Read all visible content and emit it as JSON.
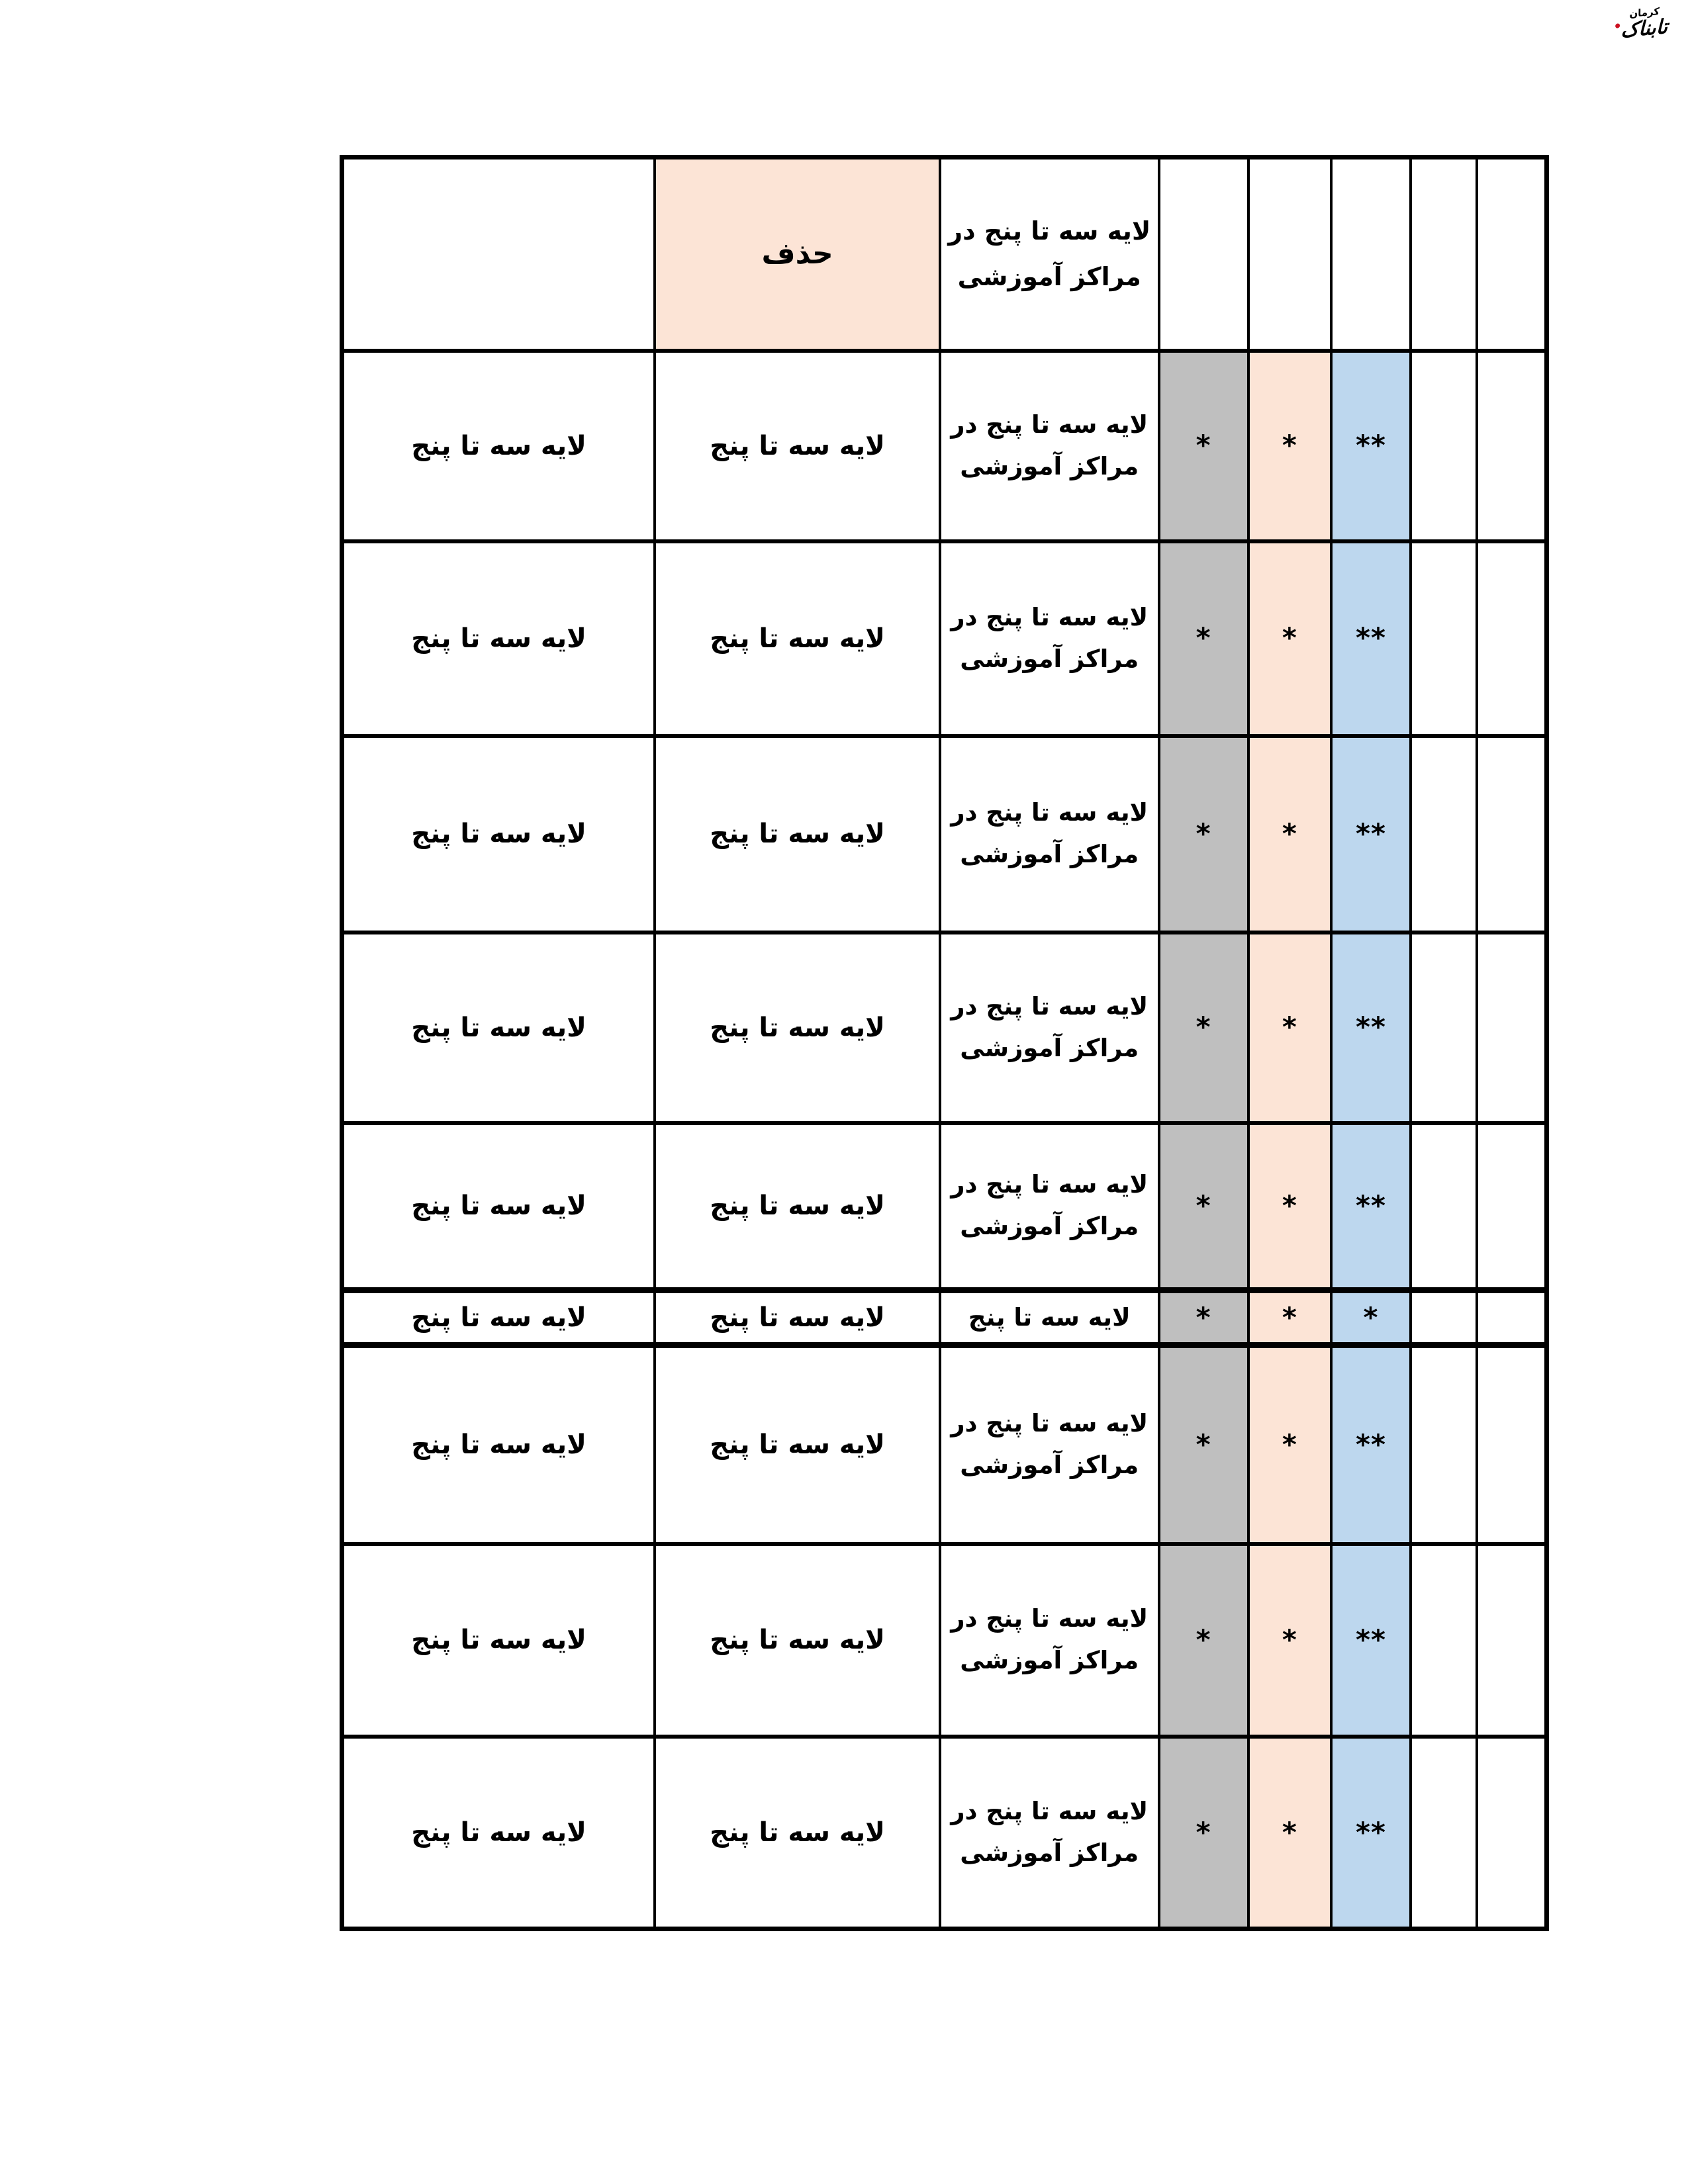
{
  "logo": {
    "brand": "تابناک",
    "city": "کرمان"
  },
  "colors": {
    "ink": "#000000",
    "paper": "#ffffff",
    "peach": "#fce4d6",
    "gray": "#bfbfbf",
    "blue": "#bdd7ee",
    "logo-red": "#cc1122"
  },
  "table": {
    "column_names": [
      "layer-range",
      "delete",
      "layer-range-in-centers",
      "flag-gray",
      "flag-peach",
      "flag-blue",
      "empty-1",
      "empty-2"
    ],
    "header_cells": [
      "",
      "حذف",
      "لایه سه تا پنج در\nمراکز آموزشی",
      "",
      "",
      "",
      "",
      ""
    ],
    "rows": [
      {
        "cells": [
          "لایه سه تا پنج",
          "لایه سه تا پنج",
          "لایه سه تا پنج در\nمراکز آموزشی",
          "*",
          "*",
          "**",
          "",
          ""
        ]
      },
      {
        "cells": [
          "لایه سه تا پنج",
          "لایه سه تا پنج",
          "لایه سه تا پنج در\nمراکز آموزشی",
          "*",
          "*",
          "**",
          "",
          ""
        ]
      },
      {
        "cells": [
          "لایه سه تا پنج",
          "لایه سه تا پنج",
          "لایه سه تا پنج در\nمراکز آموزشی",
          "*",
          "*",
          "**",
          "",
          ""
        ]
      },
      {
        "cells": [
          "لایه سه تا پنج",
          "لایه سه تا پنج",
          "لایه سه تا پنج در\nمراکز آموزشی",
          "*",
          "*",
          "**",
          "",
          ""
        ]
      },
      {
        "cells": [
          "لایه سه تا پنج",
          "لایه سه تا پنج",
          "لایه سه تا پنج در\nمراکز آموزشی",
          "*",
          "*",
          "**",
          "",
          ""
        ]
      },
      {
        "compact": true,
        "cells": [
          "لایه سه تا پنج",
          "لایه سه تا پنج",
          "لایه سه تا پنج",
          "*",
          "*",
          "*",
          "",
          ""
        ]
      },
      {
        "cells": [
          "لایه سه تا پنج",
          "لایه سه تا پنج",
          "لایه سه تا پنج در\nمراکز آموزشی",
          "*",
          "*",
          "**",
          "",
          ""
        ]
      },
      {
        "cells": [
          "لایه سه تا پنج",
          "لایه سه تا پنج",
          "لایه سه تا پنج در\nمراکز آموزشی",
          "*",
          "*",
          "**",
          "",
          ""
        ]
      },
      {
        "cells": [
          "لایه سه تا پنج",
          "لایه سه تا پنج",
          "لایه سه تا پنج در\nمراکز آموزشی",
          "*",
          "*",
          "**",
          "",
          ""
        ]
      }
    ]
  }
}
